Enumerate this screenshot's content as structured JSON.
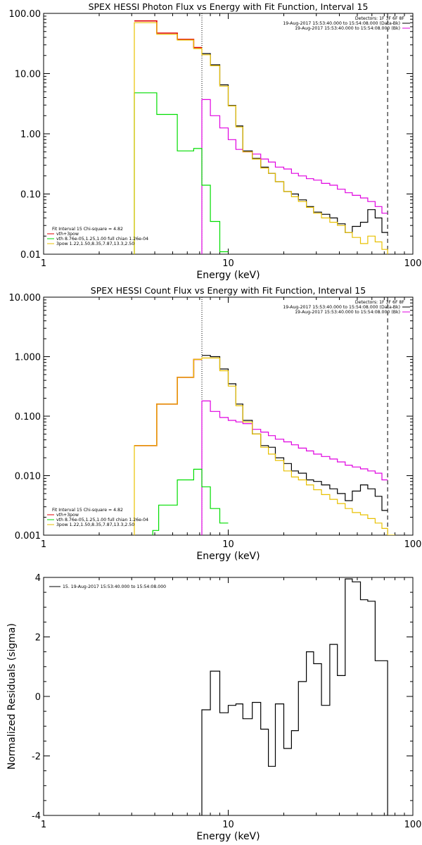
{
  "chart_data": [
    {
      "type": "line",
      "title": "SPEX HESSI Photon Flux vs Energy with Fit Function, Interval 15",
      "xlabel": "Energy (keV)",
      "ylabel": "",
      "xscale": "log",
      "yscale": "log",
      "xlim": [
        1,
        100
      ],
      "ylim": [
        0.01,
        100
      ],
      "xticks": [
        "1",
        "10",
        "100"
      ],
      "yticks": [
        {
          "v": 100,
          "label": "100.00"
        },
        {
          "v": 10,
          "label": "10.00"
        },
        {
          "v": 1,
          "label": "1.00"
        },
        {
          "v": 0.1,
          "label": "0.10"
        },
        {
          "v": 0.01,
          "label": "0.01"
        }
      ],
      "vlines": [
        {
          "x": 7.2,
          "style": "dotted"
        },
        {
          "x": 73,
          "style": "dashed"
        }
      ],
      "legend_tr": {
        "title": "Detectors: 1F 3F 6F 8F",
        "entries": [
          {
            "text": "19-Aug-2017 15:53:40.000 to 15:54:08.000 (Data-Bk)",
            "color": "#000000"
          },
          {
            "text": "19-Aug-2017 15:53:40.000 to 15:54:08.000 (Bk)",
            "color": "#e000e0"
          }
        ]
      },
      "legend_bl": [
        {
          "text": "Fit Interval 15   Chi-square = 4.82",
          "color": null
        },
        {
          "text": "vth+3pow",
          "color": "#e00000"
        },
        {
          "text": "vth 8.76e-05,1.25,1.00  full chian 1.26e-04",
          "color": "#00dd00"
        },
        {
          "text": "3pow 1.22,1.50,8.35,7.87,13.3,2.50",
          "color": "#e8c000"
        }
      ],
      "series": [
        {
          "color": "#e00000",
          "width": 1.6,
          "x_from": 7.2,
          "edges": [
            3.1,
            4.1,
            5.3,
            6.5,
            7.2
          ],
          "values": [
            75,
            47,
            37,
            27
          ]
        },
        {
          "color": "#000000",
          "width": 1.2,
          "edges": [
            7.2,
            8.0,
            9.0,
            10.0,
            11.0,
            12.0,
            13.5,
            15.0,
            16.5,
            18.0,
            20.0,
            22.0,
            24.0,
            26.5,
            29.0,
            32.0,
            35.5,
            39.0,
            43.0,
            47.0,
            52.0,
            57.0,
            62.5,
            68.0,
            73.0
          ],
          "values": [
            21.5,
            14.0,
            6.5,
            2.95,
            1.35,
            0.52,
            0.39,
            0.28,
            0.22,
            0.16,
            0.11,
            0.1,
            0.08,
            0.062,
            0.05,
            0.046,
            0.04,
            0.032,
            0.023,
            0.029,
            0.034,
            0.055,
            0.04,
            0.023
          ]
        },
        {
          "color": "#e000e0",
          "width": 1.2,
          "start_drop": 0.01,
          "edges": [
            7.2,
            8.0,
            9.0,
            10.0,
            11.0,
            12.0,
            13.5,
            15.0,
            16.5,
            18.0,
            20.0,
            22.0,
            24.0,
            26.5,
            29.0,
            32.0,
            35.5,
            39.0,
            43.0,
            47.0,
            52.0,
            57.0,
            62.5,
            68.0,
            73.0
          ],
          "values": [
            3.7,
            2.0,
            1.25,
            0.8,
            0.55,
            0.5,
            0.46,
            0.38,
            0.34,
            0.28,
            0.26,
            0.22,
            0.2,
            0.18,
            0.17,
            0.15,
            0.14,
            0.12,
            0.105,
            0.095,
            0.086,
            0.075,
            0.062,
            0.048
          ]
        },
        {
          "color": "#00dd00",
          "width": 1.2,
          "start_drop": 0.01,
          "edges": [
            3.1,
            4.1,
            5.3,
            6.5,
            7.2,
            8.0,
            9.0,
            10.0
          ],
          "values": [
            4.8,
            2.1,
            0.52,
            0.57,
            0.14,
            0.035,
            0.011
          ]
        },
        {
          "color": "#e8c000",
          "width": 1.2,
          "start_drop": 0.01,
          "end_drop": 0.01,
          "edges": [
            3.1,
            4.1,
            5.3,
            6.5,
            7.2,
            8.0,
            9.0,
            10.0,
            11.0,
            12.0,
            13.5,
            15.0,
            16.5,
            18.0,
            20.0,
            22.0,
            24.0,
            26.5,
            29.0,
            32.0,
            35.5,
            39.0,
            43.0,
            47.0,
            52.0,
            57.0,
            62.5,
            68.0,
            73.0,
            80.0
          ],
          "values": [
            70,
            45,
            36,
            26,
            20.5,
            13.5,
            6.2,
            2.9,
            1.3,
            0.5,
            0.38,
            0.27,
            0.22,
            0.16,
            0.11,
            0.09,
            0.075,
            0.06,
            0.048,
            0.04,
            0.034,
            0.03,
            0.023,
            0.019,
            0.015,
            0.02,
            0.016,
            0.012,
            0.009
          ]
        }
      ]
    },
    {
      "type": "line",
      "title": "SPEX HESSI Count Flux vs Energy with Fit Function, Interval 15",
      "xlabel": "Energy (keV)",
      "ylabel": "",
      "xscale": "log",
      "yscale": "log",
      "xlim": [
        1,
        100
      ],
      "ylim": [
        0.001,
        10
      ],
      "xticks": [
        "1",
        "10",
        "100"
      ],
      "yticks": [
        {
          "v": 10,
          "label": "10.000"
        },
        {
          "v": 1,
          "label": "1.000"
        },
        {
          "v": 0.1,
          "label": "0.100"
        },
        {
          "v": 0.01,
          "label": "0.010"
        },
        {
          "v": 0.001,
          "label": "0.001"
        }
      ],
      "vlines": [
        {
          "x": 7.2,
          "style": "dotted"
        },
        {
          "x": 73,
          "style": "dashed"
        }
      ],
      "legend_tr": {
        "title": "Detectors: 1F 3F 6F 8F",
        "entries": [
          {
            "text": "19-Aug-2017 15:53:40.000 to 15:54:08.000 (Data-Bk)",
            "color": "#000000"
          },
          {
            "text": "19-Aug-2017 15:53:40.000 to 15:54:08.000 (Bk)",
            "color": "#e000e0"
          }
        ]
      },
      "legend_bl": [
        {
          "text": "Fit Interval 15   Chi-square = 4.82",
          "color": null
        },
        {
          "text": "vth+3pow",
          "color": "#e00000"
        },
        {
          "text": "vth 8.76e-05,1.25,1.00  full chian 1.26e-04",
          "color": "#00dd00"
        },
        {
          "text": "3pow 1.22,1.50,8.35,7.87,13.3,2.50",
          "color": "#e8c000"
        }
      ],
      "series": [
        {
          "color": "#e00000",
          "width": 1.6,
          "x_from": 7.2,
          "edges": [
            3.1,
            4.1,
            5.3,
            6.5,
            7.2
          ],
          "values": [
            0.032,
            0.16,
            0.45,
            0.9
          ]
        },
        {
          "color": "#000000",
          "width": 1.2,
          "edges": [
            7.2,
            8.0,
            9.0,
            10.0,
            11.0,
            12.0,
            13.5,
            15.0,
            16.5,
            18.0,
            20.0,
            22.0,
            24.0,
            26.5,
            29.0,
            32.0,
            35.5,
            39.0,
            43.0,
            47.0,
            52.0,
            57.0,
            62.5,
            68.0,
            73.0
          ],
          "values": [
            1.05,
            1.0,
            0.62,
            0.35,
            0.16,
            0.085,
            0.05,
            0.032,
            0.03,
            0.02,
            0.016,
            0.012,
            0.011,
            0.0085,
            0.008,
            0.007,
            0.006,
            0.005,
            0.0038,
            0.0055,
            0.007,
            0.006,
            0.0045,
            0.0026
          ]
        },
        {
          "color": "#e000e0",
          "width": 1.2,
          "start_drop": 0.001,
          "edges": [
            7.2,
            8.0,
            9.0,
            10.0,
            11.0,
            12.0,
            13.5,
            15.0,
            16.5,
            18.0,
            20.0,
            22.0,
            24.0,
            26.5,
            29.0,
            32.0,
            35.5,
            39.0,
            43.0,
            47.0,
            52.0,
            57.0,
            62.5,
            68.0,
            73.0
          ],
          "values": [
            0.18,
            0.12,
            0.095,
            0.085,
            0.08,
            0.075,
            0.06,
            0.054,
            0.047,
            0.041,
            0.037,
            0.033,
            0.029,
            0.026,
            0.023,
            0.021,
            0.019,
            0.017,
            0.015,
            0.014,
            0.013,
            0.012,
            0.011,
            0.0085
          ]
        },
        {
          "color": "#00dd00",
          "width": 1.2,
          "start_drop": 0.001,
          "edges": [
            3.9,
            4.2,
            5.3,
            6.5,
            7.2,
            8.0,
            9.0,
            10.0
          ],
          "values": [
            0.0012,
            0.0032,
            0.0085,
            0.0128,
            0.0065,
            0.0028,
            0.0016
          ]
        },
        {
          "color": "#e8c000",
          "width": 1.2,
          "start_drop": 0.001,
          "end_drop": 0.001,
          "edges": [
            3.1,
            4.1,
            5.3,
            6.5,
            7.2,
            8.0,
            9.0,
            10.0,
            11.0,
            12.0,
            13.5,
            15.0,
            16.5,
            18.0,
            20.0,
            22.0,
            24.0,
            26.5,
            29.0,
            32.0,
            35.5,
            39.0,
            43.0,
            47.0,
            52.0,
            57.0,
            62.5,
            68.0,
            73.0,
            80.0
          ],
          "values": [
            0.032,
            0.16,
            0.45,
            0.9,
            0.95,
            0.95,
            0.58,
            0.32,
            0.15,
            0.08,
            0.05,
            0.03,
            0.023,
            0.018,
            0.012,
            0.0095,
            0.0085,
            0.007,
            0.0058,
            0.0048,
            0.004,
            0.0034,
            0.0028,
            0.0024,
            0.0022,
            0.0019,
            0.0016,
            0.0013,
            0.001
          ]
        }
      ]
    },
    {
      "type": "line",
      "title": "",
      "xlabel": "Energy (keV)",
      "ylabel": "Normalized Residuals (sigma)",
      "xscale": "log",
      "yscale": "linear",
      "xlim": [
        1,
        100
      ],
      "ylim": [
        -4,
        4
      ],
      "xticks": [
        "1",
        "10",
        "100"
      ],
      "yticks": [
        {
          "v": 4,
          "label": "4"
        },
        {
          "v": 2,
          "label": "2"
        },
        {
          "v": 0,
          "label": "0"
        },
        {
          "v": -2,
          "label": "-2"
        },
        {
          "v": -4,
          "label": "-4"
        }
      ],
      "legend_tl": "15. 19-Aug-2017 15:53:40.000 to 15:54:08.000",
      "series": [
        {
          "color": "#000000",
          "width": 1.2,
          "start_drop": -4,
          "end_drop": -4,
          "edges": [
            7.2,
            8.0,
            9.0,
            10.0,
            11.0,
            12.0,
            13.5,
            15.0,
            16.5,
            18.0,
            20.0,
            22.0,
            24.0,
            26.5,
            29.0,
            32.0,
            35.5,
            39.0,
            43.0,
            47.0,
            52.0,
            57.0,
            62.5,
            68.0,
            73.0
          ],
          "values": [
            -0.45,
            0.85,
            -0.55,
            -0.3,
            -0.25,
            -0.75,
            -0.2,
            -1.1,
            -2.35,
            -0.25,
            -1.75,
            -1.15,
            0.5,
            1.5,
            1.1,
            -0.3,
            1.75,
            0.7,
            3.95,
            3.85,
            3.25,
            3.2,
            1.2,
            1.2
          ]
        }
      ]
    }
  ]
}
